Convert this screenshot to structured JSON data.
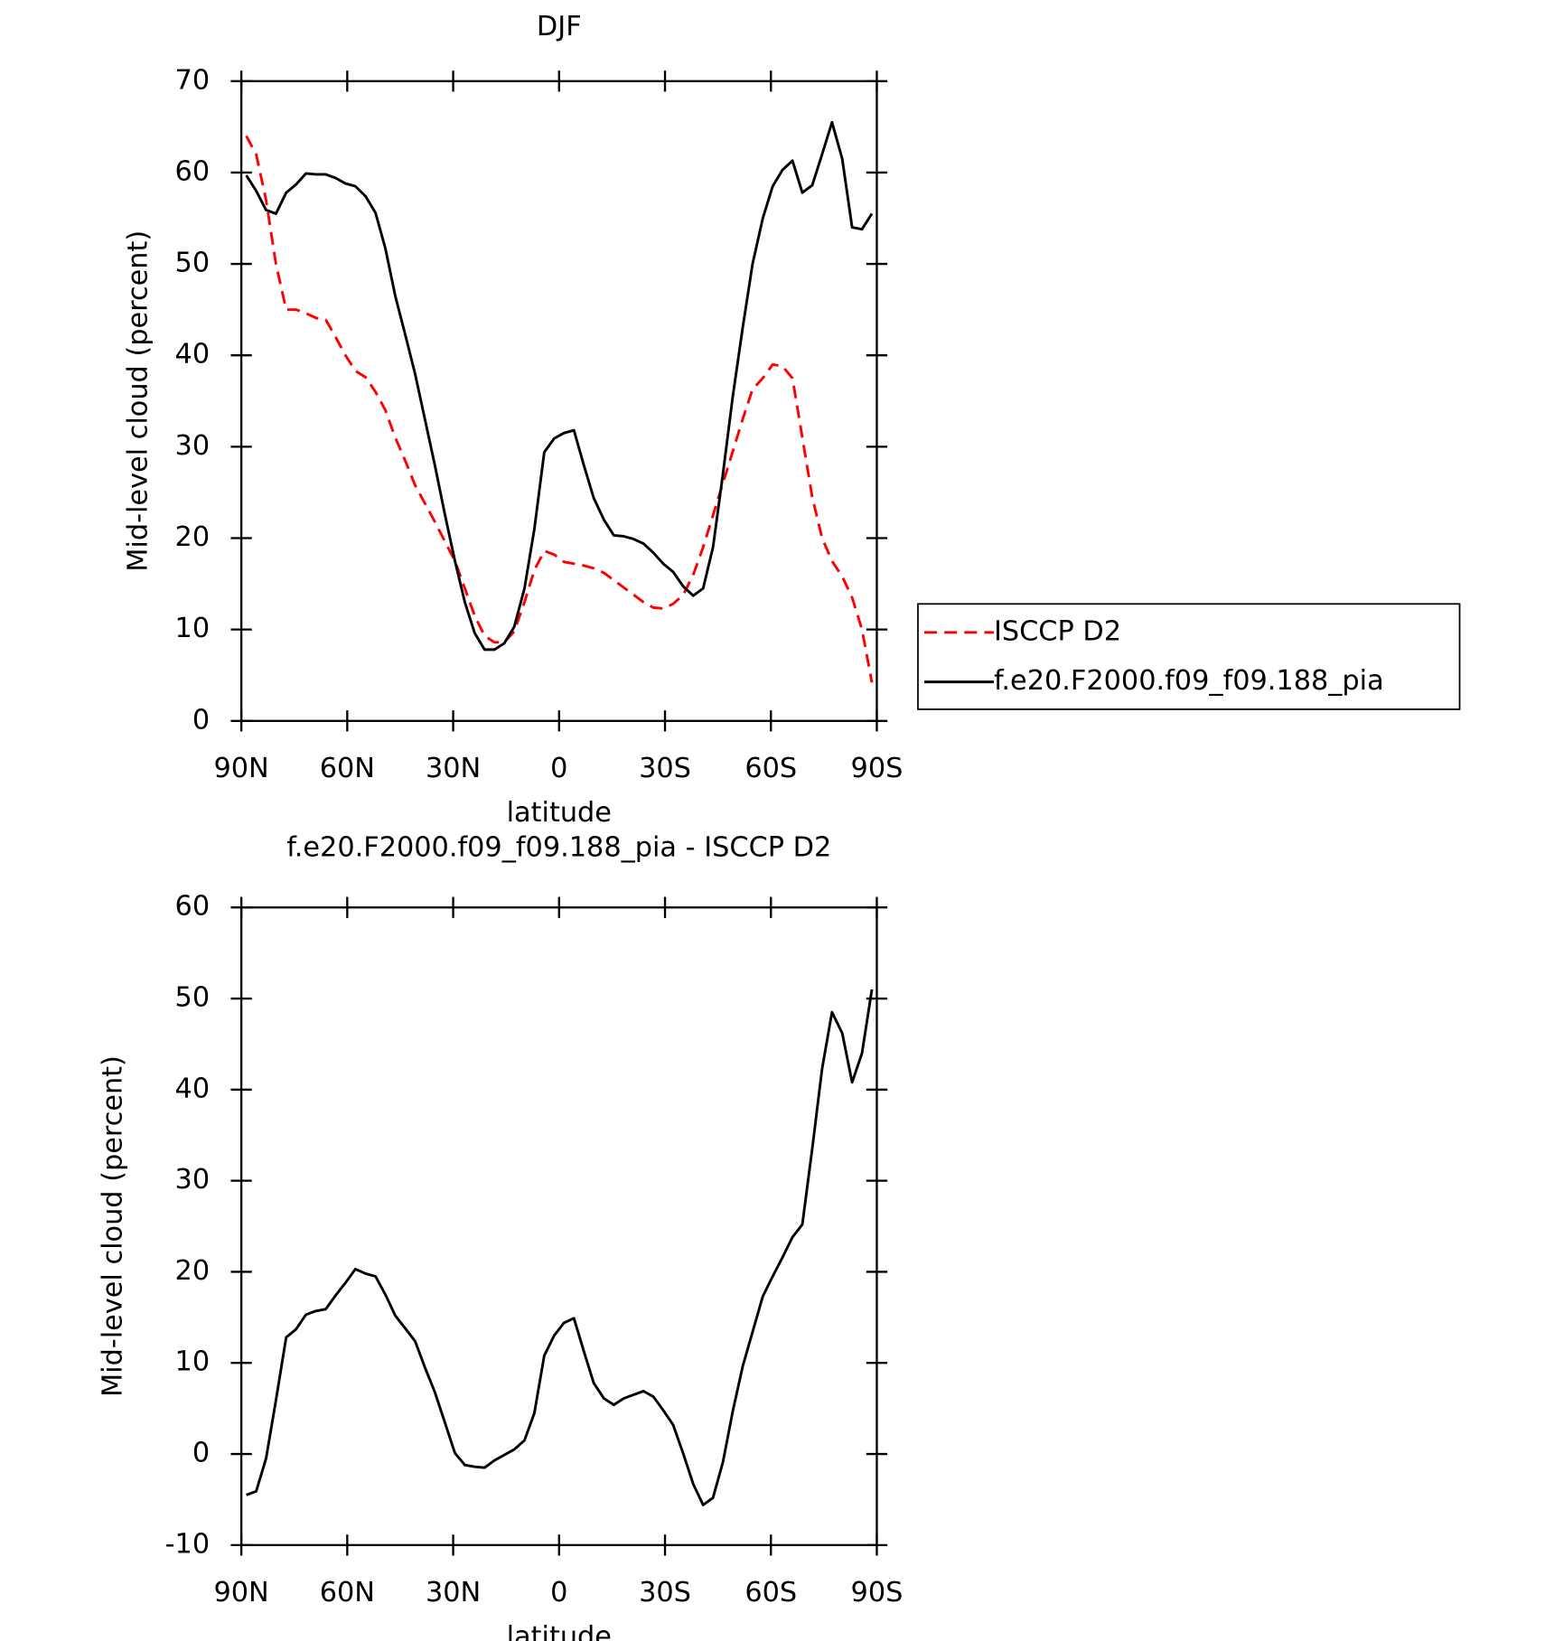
{
  "chart_data": [
    {
      "type": "line",
      "title": "DJF",
      "xlabel": "latitude",
      "ylabel": "Mid-level cloud (percent)",
      "xlim": [
        90,
        -90
      ],
      "xticks": [
        {
          "value": 90,
          "label": "90N"
        },
        {
          "value": 60,
          "label": "60N"
        },
        {
          "value": 30,
          "label": "30N"
        },
        0,
        {
          "value": -30,
          "label": "30S"
        },
        {
          "value": -60,
          "label": "60S"
        },
        {
          "value": -90,
          "label": "90S"
        }
      ],
      "ylim": [
        0,
        70
      ],
      "yticks": [
        0,
        10,
        20,
        30,
        40,
        50,
        60,
        70
      ],
      "legend": "right",
      "x": [
        88.6,
        85.8,
        83.0,
        80.2,
        77.3,
        74.5,
        71.7,
        68.9,
        66.1,
        63.3,
        60.5,
        57.7,
        54.8,
        52.0,
        49.2,
        46.4,
        43.6,
        40.8,
        38.0,
        35.2,
        32.3,
        29.5,
        26.7,
        23.9,
        21.1,
        18.3,
        15.5,
        12.7,
        9.8,
        7.0,
        4.2,
        1.4,
        -1.4,
        -4.2,
        -7.0,
        -9.8,
        -12.7,
        -15.5,
        -18.3,
        -21.1,
        -23.9,
        -26.7,
        -29.5,
        -32.3,
        -35.2,
        -38.0,
        -40.8,
        -43.6,
        -46.4,
        -49.2,
        -52.0,
        -54.8,
        -57.7,
        -60.5,
        -63.3,
        -66.1,
        -68.9,
        -71.7,
        -74.5,
        -77.3,
        -80.2,
        -83.0,
        -85.8,
        -88.6
      ],
      "series": [
        {
          "name": "ISCCP D2",
          "color": "#ff0000",
          "line_style": "dashed",
          "values": [
            64.0,
            62,
            57,
            50,
            45,
            45,
            44.6,
            44.1,
            43.9,
            42,
            40,
            38.3,
            37.6,
            36,
            34,
            31,
            28.5,
            25.8,
            23.8,
            21.8,
            19.6,
            17.5,
            14.5,
            11.5,
            9.3,
            8.6,
            8.6,
            9.8,
            13,
            16.5,
            18.6,
            18.2,
            17.4,
            17.2,
            17,
            16.7,
            16.2,
            15.4,
            14.6,
            13.8,
            13,
            12.4,
            12.3,
            12.8,
            13.8,
            16,
            19,
            22.5,
            26,
            29.5,
            33,
            36.3,
            37.5,
            39,
            38.8,
            37.5,
            31,
            24.5,
            20,
            17.5,
            15.8,
            13.5,
            10,
            4.2
          ]
        },
        {
          "name": "f.e20.F2000.f09_f09.188_pia",
          "color": "#000000",
          "line_style": "solid",
          "values": [
            59.7,
            58,
            55.9,
            55.5,
            57.8,
            58.7,
            59.9,
            59.8,
            59.8,
            59.4,
            58.8,
            58.5,
            57.4,
            55.6,
            51.7,
            46.5,
            42.3,
            38,
            33,
            28,
            22.5,
            17.5,
            13,
            9.6,
            7.8,
            7.8,
            8.5,
            10.3,
            14.5,
            21,
            29.4,
            30.9,
            31.5,
            31.8,
            28,
            24.4,
            22,
            20.3,
            20.2,
            19.9,
            19.4,
            18.4,
            17.2,
            16.3,
            14.7,
            13.7,
            14.5,
            19,
            27,
            35.5,
            43,
            50,
            55,
            58.5,
            60.3,
            61.3,
            57.8,
            58.6,
            62,
            65.5,
            61.5,
            54,
            53.8,
            55.5
          ]
        }
      ]
    },
    {
      "type": "line",
      "title": "f.e20.F2000.f09_f09.188_pia - ISCCP D2",
      "xlabel": "latitude",
      "ylabel": "Mid-level cloud (percent)",
      "xlim": [
        90,
        -90
      ],
      "xticks": [
        {
          "value": 90,
          "label": "90N"
        },
        {
          "value": 60,
          "label": "60N"
        },
        {
          "value": 30,
          "label": "30N"
        },
        0,
        {
          "value": -30,
          "label": "30S"
        },
        {
          "value": -60,
          "label": "60S"
        },
        {
          "value": -90,
          "label": "90S"
        }
      ],
      "ylim": [
        -10,
        60
      ],
      "yticks": [
        -10,
        0,
        10,
        20,
        30,
        40,
        50,
        60
      ],
      "x": [
        88.6,
        85.8,
        83.0,
        80.2,
        77.3,
        74.5,
        71.7,
        68.9,
        66.1,
        63.3,
        60.5,
        57.7,
        54.8,
        52.0,
        49.2,
        46.4,
        43.6,
        40.8,
        38.0,
        35.2,
        32.3,
        29.5,
        26.7,
        23.9,
        21.1,
        18.3,
        15.5,
        12.7,
        9.8,
        7.0,
        4.2,
        1.4,
        -1.4,
        -4.2,
        -7.0,
        -9.8,
        -12.7,
        -15.5,
        -18.3,
        -21.1,
        -23.9,
        -26.7,
        -29.5,
        -32.3,
        -35.2,
        -38.0,
        -40.8,
        -43.6,
        -46.4,
        -49.2,
        -52.0,
        -54.8,
        -57.7,
        -60.5,
        -63.3,
        -66.1,
        -68.9,
        -71.7,
        -74.5,
        -77.3,
        -80.2,
        -83.0,
        -85.8,
        -88.6
      ],
      "series": [
        {
          "color": "#000000",
          "line_style": "solid",
          "values": [
            -4.5,
            -4.1,
            -0.5,
            5.9,
            12.8,
            13.7,
            15.3,
            15.7,
            15.9,
            17.4,
            18.8,
            20.3,
            19.8,
            19.5,
            17.5,
            15.2,
            13.8,
            12.4,
            9.5,
            6.8,
            3.4,
            0.1,
            -1.2,
            -1.4,
            -1.5,
            -0.7,
            -0.1,
            0.5,
            1.5,
            4.5,
            10.8,
            13,
            14.4,
            14.9,
            11.3,
            7.8,
            6.1,
            5.4,
            6.1,
            6.5,
            6.9,
            6.3,
            4.8,
            3.2,
            0,
            -3.3,
            -5.6,
            -4.8,
            -0.9,
            4.7,
            9.6,
            13.4,
            17.3,
            19.5,
            21.6,
            23.8,
            25.2,
            33.5,
            42.3,
            48.5,
            46.2,
            40.8,
            44,
            51
          ]
        }
      ]
    }
  ]
}
